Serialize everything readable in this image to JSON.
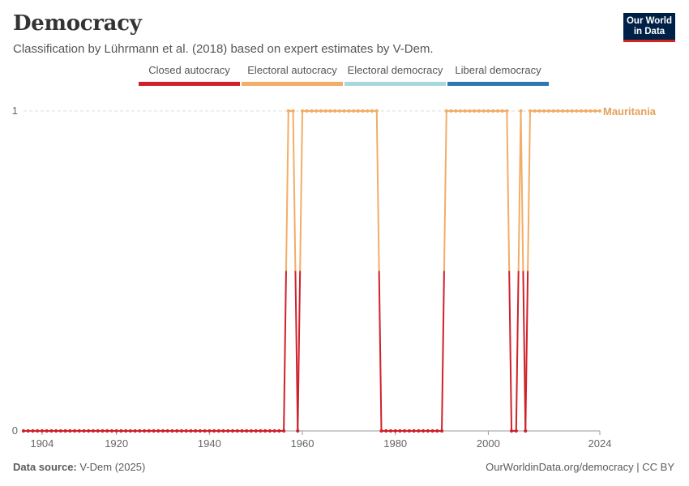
{
  "header": {
    "title": "Democracy",
    "subtitle": "Classification by Lührmann et al. (2018) based on expert estimates by V-Dem."
  },
  "logo": {
    "line1": "Our World",
    "line2": "in Data"
  },
  "footer": {
    "source_label": "Data source:",
    "source_value": "V-Dem (2025)",
    "url_license": "OurWorldinData.org/democracy | CC BY"
  },
  "colors": {
    "closed": "#d0212a",
    "electoral_autocracy": "#f2ad67",
    "electoral_democracy": "#a8d8dd",
    "liberal_democracy": "#2f77b0",
    "series_label": "#e3a15a"
  },
  "chart_data": {
    "type": "line",
    "title": "Democracy",
    "series_name": "Mauritania",
    "legend": [
      {
        "label": "Closed autocracy",
        "color": "#d0212a"
      },
      {
        "label": "Electoral autocracy",
        "color": "#f2ad67"
      },
      {
        "label": "Electoral democracy",
        "color": "#a8d8dd"
      },
      {
        "label": "Liberal democracy",
        "color": "#2f77b0"
      }
    ],
    "xlim": [
      1900,
      2024
    ],
    "ylim": [
      0,
      1
    ],
    "x_ticks": [
      1904,
      1920,
      1940,
      1960,
      1980,
      2000,
      2024
    ],
    "y_ticks": [
      0,
      1
    ],
    "segments": [
      {
        "from": 1900,
        "to": 1956,
        "value": 0
      },
      {
        "from": 1957,
        "to": 1958,
        "value": 1
      },
      {
        "from": 1959,
        "to": 1959,
        "value": 0
      },
      {
        "from": 1960,
        "to": 1976,
        "value": 1
      },
      {
        "from": 1977,
        "to": 1990,
        "value": 0
      },
      {
        "from": 1991,
        "to": 2004,
        "value": 1
      },
      {
        "from": 2005,
        "to": 2006,
        "value": 0
      },
      {
        "from": 2007,
        "to": 2007,
        "value": 1
      },
      {
        "from": 2008,
        "to": 2008,
        "value": 0
      },
      {
        "from": 2009,
        "to": 2024,
        "value": 1
      }
    ]
  }
}
